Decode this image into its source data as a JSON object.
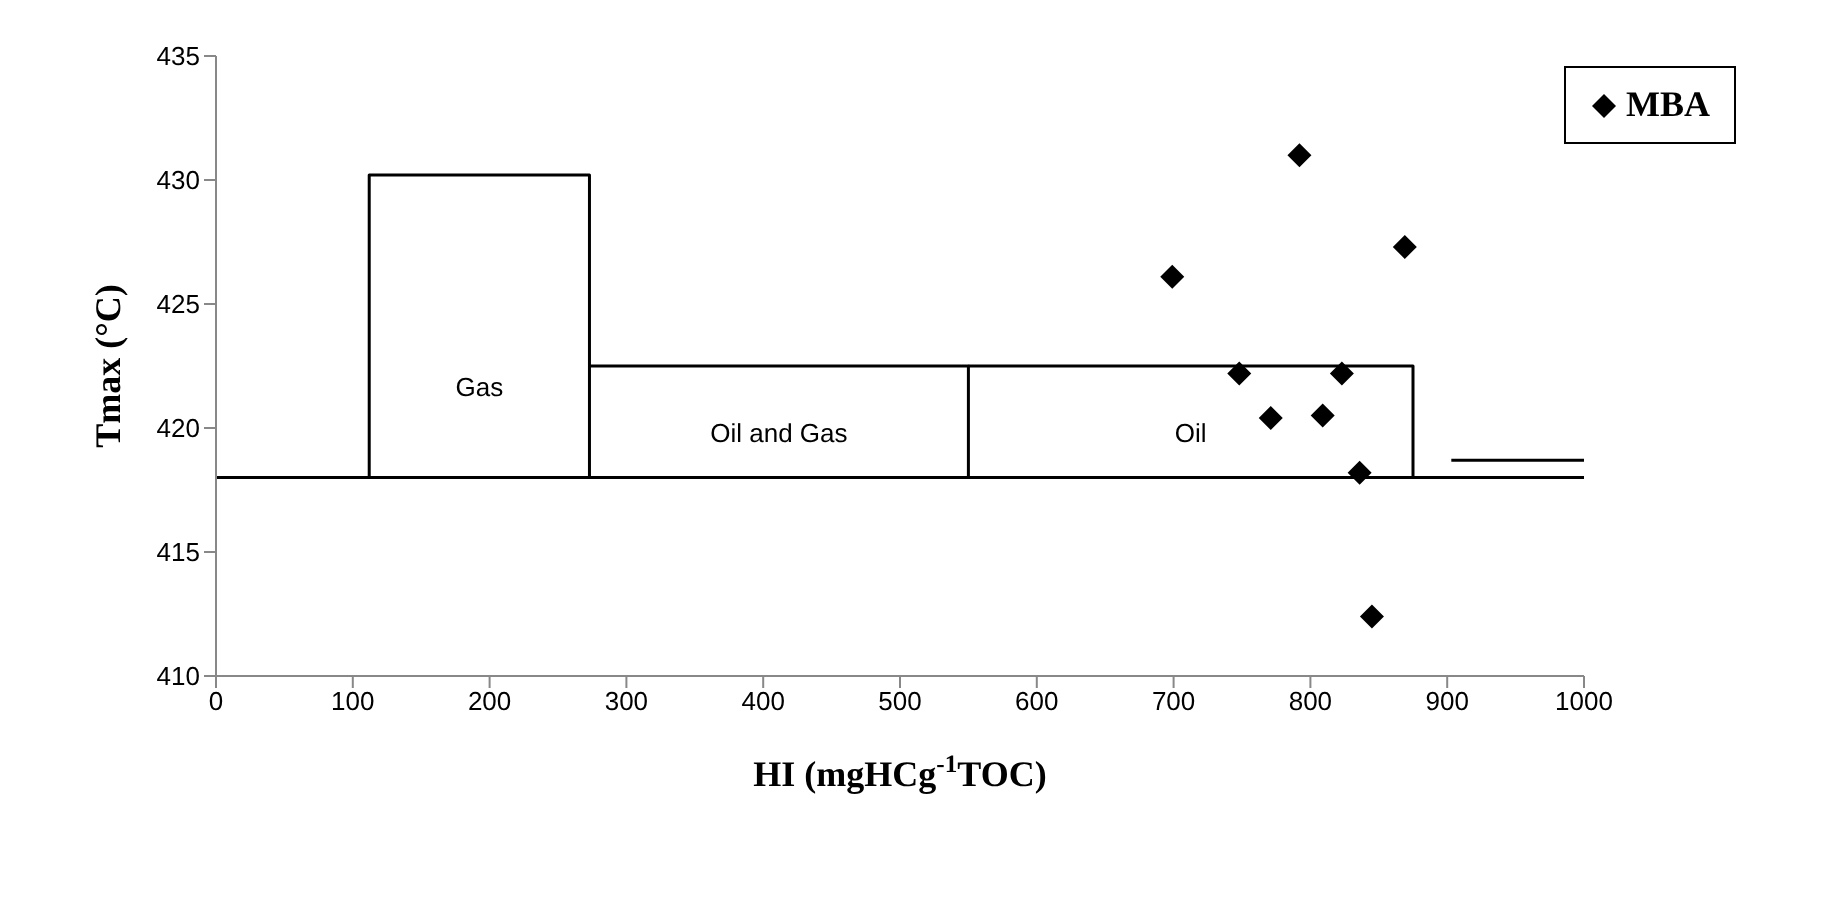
{
  "chart_data": {
    "type": "scatter",
    "xlabel": "HI (mgHCg$^{-1}$TOC)",
    "ylabel": "Tmax (°C)",
    "xlim": [
      0,
      1000
    ],
    "xticks": [
      0,
      100,
      200,
      300,
      400,
      500,
      600,
      700,
      800,
      900,
      1000
    ],
    "ylim": [
      410,
      435
    ],
    "yticks": [
      410,
      415,
      420,
      425,
      430,
      435
    ],
    "grid": false,
    "legend": "top right",
    "marker": "diamond",
    "series": [
      {
        "name": "MBA",
        "color": "#000000",
        "x": [
          699,
          792,
          869,
          748,
          823,
          771,
          809,
          836,
          845
        ],
        "values": [
          426.1,
          431.0,
          427.3,
          422.2,
          422.2,
          420.4,
          420.5,
          418.2,
          412.4
        ]
      },
      {
        "type": "line",
        "marker": "none",
        "color": "#000000",
        "x": [
          112,
          112,
          273,
          273
        ],
        "values": [
          418,
          430.2,
          430.2,
          418
        ]
      },
      {
        "type": "line",
        "marker": "none",
        "color": "#000000",
        "x": [
          273,
          550,
          550
        ],
        "values": [
          422.5,
          422.5,
          418
        ]
      },
      {
        "type": "line",
        "marker": "none",
        "color": "#000000",
        "x": [
          550,
          875,
          875
        ],
        "values": [
          422.5,
          422.5,
          418
        ]
      },
      {
        "type": "line",
        "marker": "none",
        "color": "#000000",
        "x": [
          903,
          1000
        ],
        "values": [
          418.7,
          418.7
        ]
      }
    ],
    "ref_lines": [
      {
        "axis": "y",
        "value": 418,
        "color": "#000000"
      }
    ],
    "annotations": [
      "Gas",
      "Oil and Gas",
      "Oil"
    ]
  }
}
